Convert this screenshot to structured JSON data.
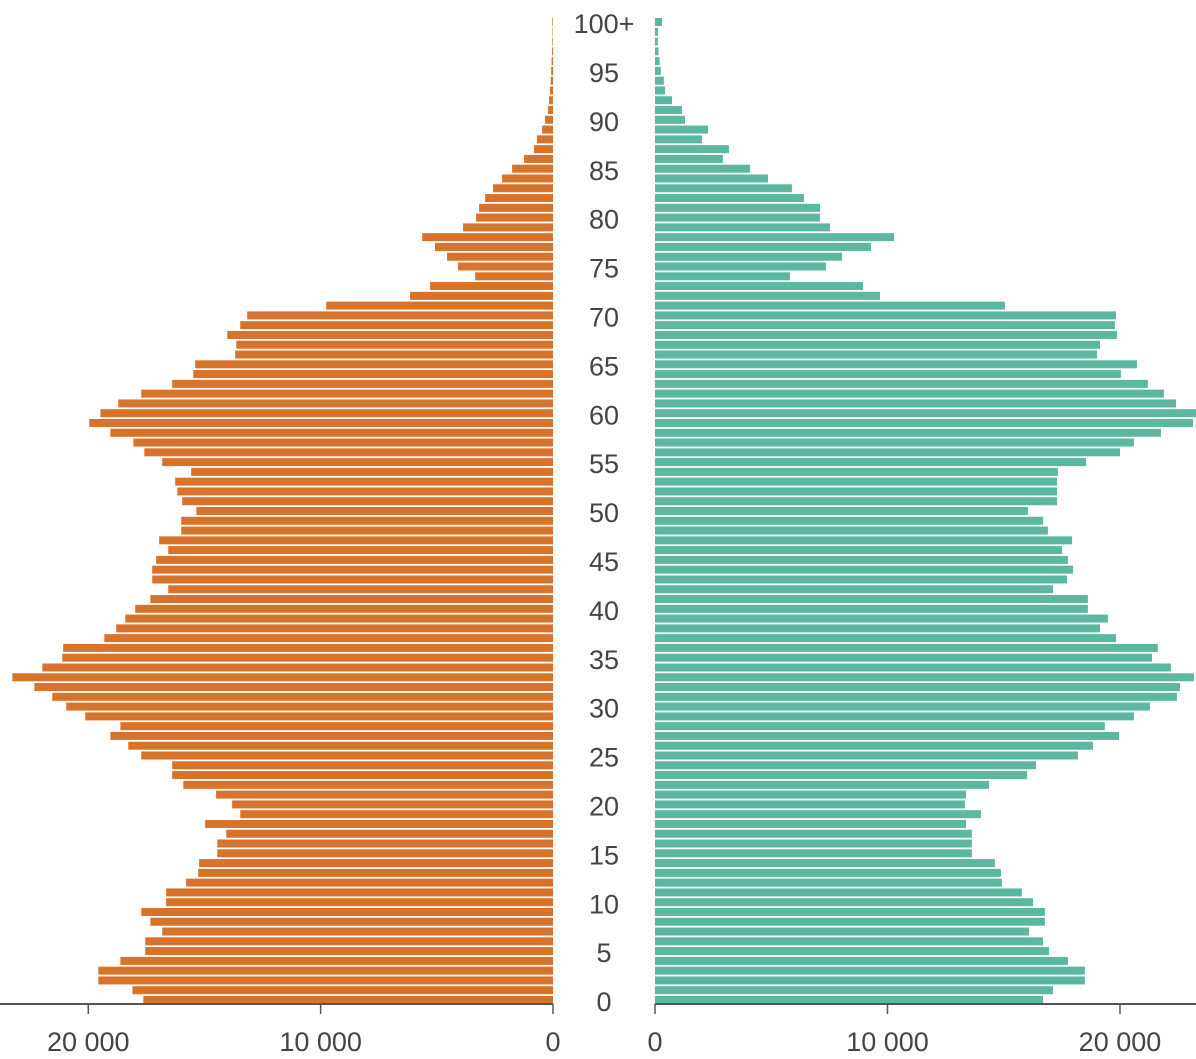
{
  "chart_data": {
    "type": "pyramid",
    "categories": [
      "0",
      null,
      null,
      null,
      null,
      "5",
      null,
      null,
      null,
      null,
      "10",
      null,
      null,
      null,
      null,
      "15",
      null,
      null,
      null,
      null,
      "20",
      null,
      null,
      null,
      null,
      "25",
      null,
      null,
      null,
      null,
      "30",
      null,
      null,
      null,
      null,
      "35",
      null,
      null,
      null,
      null,
      "40",
      null,
      null,
      null,
      null,
      "45",
      null,
      null,
      null,
      null,
      "50",
      null,
      null,
      null,
      null,
      "55",
      null,
      null,
      null,
      null,
      "60",
      null,
      null,
      null,
      null,
      "65",
      null,
      null,
      null,
      null,
      "70",
      null,
      null,
      null,
      null,
      "75",
      null,
      null,
      null,
      null,
      "80",
      null,
      null,
      null,
      null,
      "85",
      null,
      null,
      null,
      null,
      "90",
      null,
      null,
      null,
      null,
      "95",
      null,
      null,
      null,
      null,
      "100+"
    ],
    "series": [
      {
        "direction": "left",
        "color": "#d8732c",
        "xlim": [
          0,
          23800
        ],
        "xticks": [
          0,
          {
            "value": 10000,
            "label": "10 000"
          },
          {
            "value": 20000,
            "label": "20 000"
          }
        ],
        "values": [
          17630,
          18100,
          19570,
          19570,
          18620,
          17550,
          17550,
          16820,
          17330,
          17720,
          16650,
          16650,
          15790,
          15270,
          15230,
          14450,
          14450,
          14060,
          14970,
          13460,
          13810,
          14500,
          15910,
          16390,
          16390,
          17720,
          18280,
          19050,
          18620,
          20130,
          20950,
          21550,
          22320,
          23270,
          21980,
          21120,
          21080,
          19310,
          18800,
          18410,
          17980,
          17330,
          16560,
          17250,
          17250,
          17080,
          16560,
          16950,
          16000,
          16000,
          15350,
          15960,
          16170,
          16260,
          15570,
          16820,
          17590,
          18060,
          19050,
          19960,
          19480,
          18710,
          17720,
          16390,
          15480,
          15400,
          13680,
          13630,
          14020,
          13460,
          13160,
          9760,
          6150,
          5290,
          3350,
          4090,
          4560,
          5080,
          5630,
          3870,
          3310,
          3180,
          2920,
          2580,
          2190,
          1760,
          1250,
          820,
          690,
          470,
          340,
          220,
          170,
          130,
          100,
          80,
          60,
          40,
          30,
          20,
          30
        ]
      },
      {
        "direction": "right",
        "color": "#5cb7a1",
        "xlim": [
          0,
          23270
        ],
        "xticks": [
          0,
          {
            "value": 10000,
            "label": "10 000"
          },
          {
            "value": 20000,
            "label": "20 000"
          }
        ],
        "values": [
          16690,
          17120,
          18490,
          18490,
          17760,
          16950,
          16690,
          16090,
          16770,
          16770,
          16260,
          15780,
          14920,
          14880,
          14620,
          13630,
          13630,
          13630,
          13380,
          14020,
          13330,
          13380,
          14370,
          16000,
          16390,
          18190,
          18840,
          19960,
          19350,
          20600,
          21290,
          22450,
          22580,
          23180,
          22190,
          21380,
          21630,
          19830,
          19140,
          19480,
          18620,
          18620,
          17120,
          17720,
          17980,
          17760,
          17510,
          17940,
          16900,
          16690,
          16040,
          17290,
          17290,
          17290,
          17330,
          18540,
          20000,
          20600,
          21760,
          23140,
          23270,
          22410,
          21890,
          21200,
          20040,
          20730,
          19010,
          19140,
          19870,
          19780,
          19830,
          15050,
          9680,
          8950,
          5810,
          7350,
          8040,
          9290,
          10280,
          7530,
          7100,
          7100,
          6410,
          5890,
          4860,
          4090,
          2920,
          3180,
          2020,
          2280,
          1290,
          1160,
          730,
          430,
          380,
          250,
          200,
          150,
          120,
          130,
          300
        ]
      }
    ]
  }
}
